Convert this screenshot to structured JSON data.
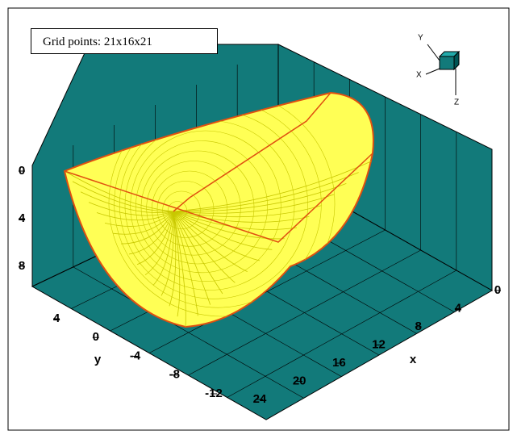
{
  "chart_data": {
    "type": "mesh3d",
    "annotation": "Grid points: 21x16x21",
    "x_label": "x",
    "y_label": "y",
    "xlim": [
      0,
      24
    ],
    "xticks": [
      0,
      4,
      8,
      12,
      16,
      20,
      24
    ],
    "ylim": [
      -12,
      4
    ],
    "yticks": [
      4,
      0,
      -4,
      -8,
      -12
    ],
    "zlim": [
      0,
      8
    ],
    "zticks": [
      0,
      4,
      8
    ],
    "orientation": {
      "x": "X",
      "y": "Y",
      "z": "Z"
    },
    "floor_color": "#127a7a",
    "mesh_color": "#ffff55",
    "edge_color": "#e05010"
  }
}
